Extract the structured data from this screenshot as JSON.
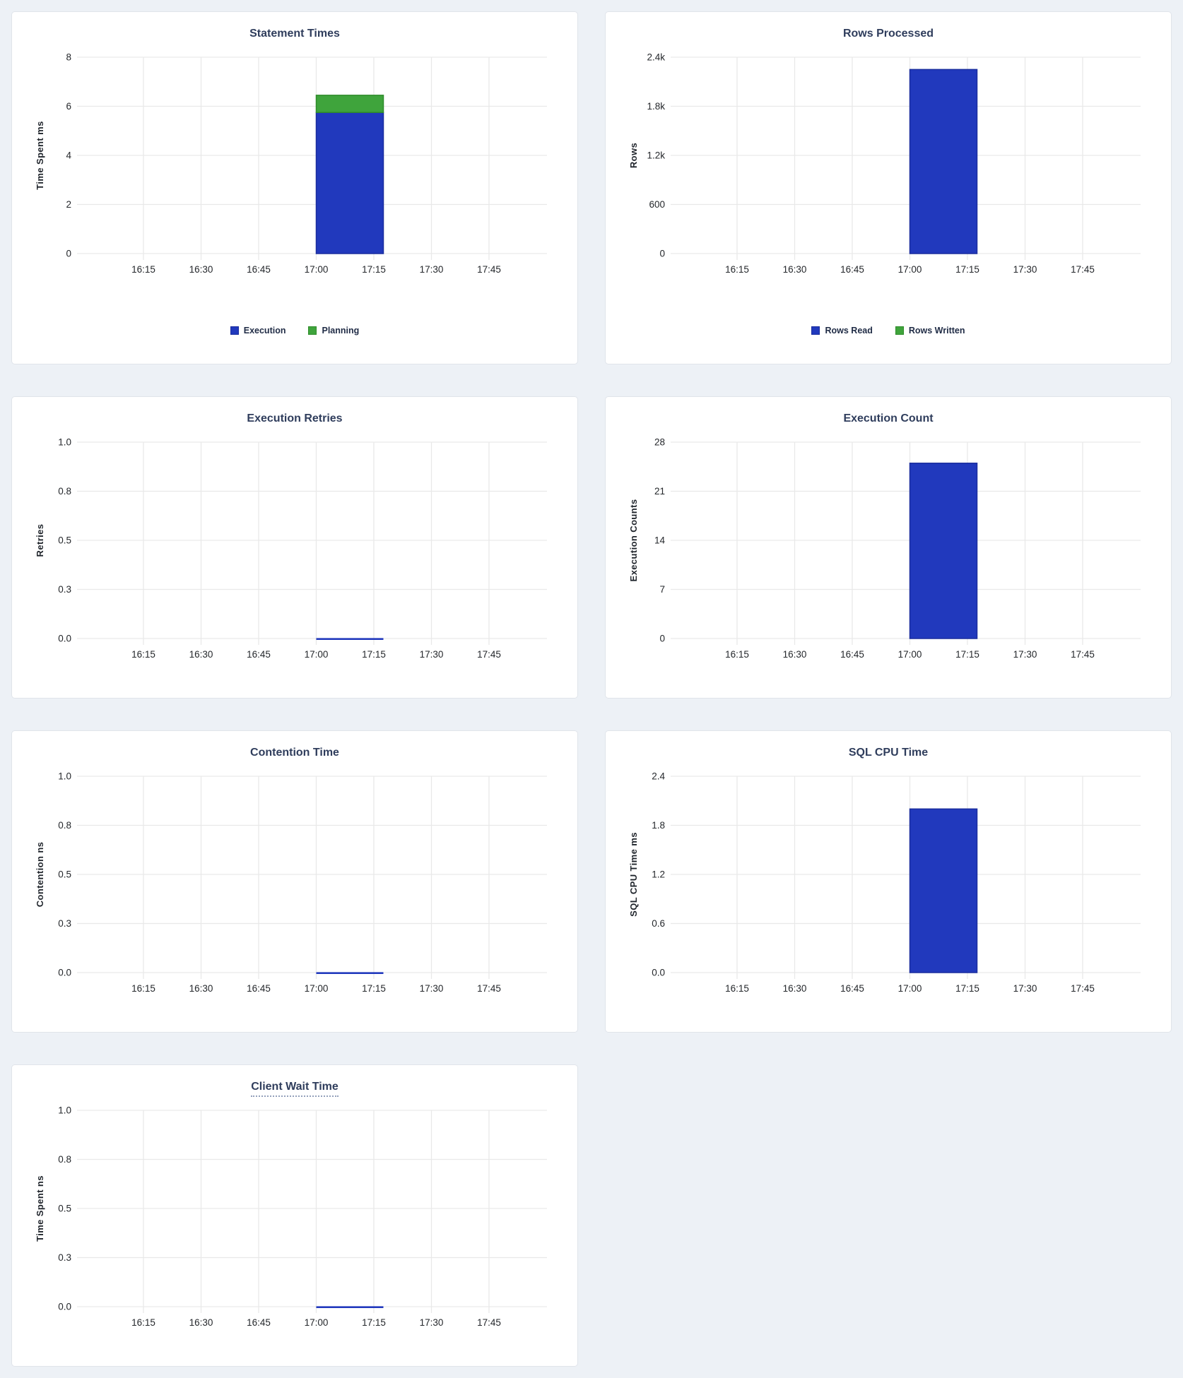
{
  "page": {
    "background": "#edf1f6"
  },
  "colors": {
    "bar_blue": "#2139bd",
    "bar_blue_stroke": "#1a2d9e",
    "bar_green": "#3fa43c",
    "bar_green_stroke": "#2e8c2a",
    "grid": "#e9e9e9",
    "title_text": "#2f3d5c",
    "tick_text": "#24272b",
    "legend_text": "#1f2b45",
    "title_underline": "#93a0ba"
  },
  "chart_data": [
    {
      "type": "bar",
      "title": "Statement Times",
      "title_underlined": false,
      "ylabel": "Time Spent ms",
      "ymax": 8,
      "ytick_labels": [
        "0",
        "2",
        "4",
        "6",
        "8"
      ],
      "xtick_labels": [
        "16:15",
        "16:30",
        "16:45",
        "17:00",
        "17:15",
        "17:30",
        "17:45"
      ],
      "bar_window": {
        "start": "17:00",
        "end": "17:15"
      },
      "stacked": true,
      "series": [
        {
          "name": "Execution",
          "color": "blue",
          "value": 5.75
        },
        {
          "name": "Planning",
          "color": "green",
          "value": 0.7
        }
      ],
      "legend": [
        {
          "label": "Execution",
          "color": "blue"
        },
        {
          "label": "Planning",
          "color": "green"
        }
      ]
    },
    {
      "type": "bar",
      "title": "Rows Processed",
      "title_underlined": false,
      "ylabel": "Rows",
      "ymax": 2400,
      "ytick_labels": [
        "0",
        "600",
        "1.2k",
        "1.8k",
        "2.4k"
      ],
      "xtick_labels": [
        "16:15",
        "16:30",
        "16:45",
        "17:00",
        "17:15",
        "17:30",
        "17:45"
      ],
      "bar_window": {
        "start": "17:00",
        "end": "17:15"
      },
      "stacked": true,
      "series": [
        {
          "name": "Rows Read",
          "color": "blue",
          "value": 2250
        },
        {
          "name": "Rows Written",
          "color": "green",
          "value": 0
        }
      ],
      "legend": [
        {
          "label": "Rows Read",
          "color": "blue"
        },
        {
          "label": "Rows Written",
          "color": "green"
        }
      ]
    },
    {
      "type": "bar",
      "title": "Execution Retries",
      "title_underlined": false,
      "ylabel": "Retries",
      "ymax": 1,
      "ytick_labels": [
        "0.0",
        "0.3",
        "0.5",
        "0.8",
        "1.0"
      ],
      "xtick_labels": [
        "16:15",
        "16:30",
        "16:45",
        "17:00",
        "17:15",
        "17:30",
        "17:45"
      ],
      "bar_window": {
        "start": "17:00",
        "end": "17:15"
      },
      "stacked": false,
      "series": [
        {
          "color": "blue",
          "value": 0
        }
      ],
      "legend": null
    },
    {
      "type": "bar",
      "title": "Execution Count",
      "title_underlined": false,
      "ylabel": "Execution Counts",
      "ymax": 28,
      "ytick_labels": [
        "0",
        "7",
        "14",
        "21",
        "28"
      ],
      "xtick_labels": [
        "16:15",
        "16:30",
        "16:45",
        "17:00",
        "17:15",
        "17:30",
        "17:45"
      ],
      "bar_window": {
        "start": "17:00",
        "end": "17:15"
      },
      "stacked": false,
      "series": [
        {
          "color": "blue",
          "value": 25
        }
      ],
      "legend": null
    },
    {
      "type": "bar",
      "title": "Contention Time",
      "title_underlined": false,
      "ylabel": "Contention ns",
      "ymax": 1,
      "ytick_labels": [
        "0.0",
        "0.3",
        "0.5",
        "0.8",
        "1.0"
      ],
      "xtick_labels": [
        "16:15",
        "16:30",
        "16:45",
        "17:00",
        "17:15",
        "17:30",
        "17:45"
      ],
      "bar_window": {
        "start": "17:00",
        "end": "17:15"
      },
      "stacked": false,
      "series": [
        {
          "color": "blue",
          "value": 0
        }
      ],
      "legend": null
    },
    {
      "type": "bar",
      "title": "SQL CPU Time",
      "title_underlined": false,
      "ylabel": "SQL CPU Time ms",
      "ymax": 2.4,
      "ytick_labels": [
        "0.0",
        "0.6",
        "1.2",
        "1.8",
        "2.4"
      ],
      "xtick_labels": [
        "16:15",
        "16:30",
        "16:45",
        "17:00",
        "17:15",
        "17:30",
        "17:45"
      ],
      "bar_window": {
        "start": "17:00",
        "end": "17:15"
      },
      "stacked": false,
      "series": [
        {
          "color": "blue",
          "value": 2.0
        }
      ],
      "legend": null
    },
    {
      "type": "bar",
      "title": "Client Wait Time",
      "title_underlined": true,
      "ylabel": "Time Spent ns",
      "ymax": 1,
      "ytick_labels": [
        "0.0",
        "0.3",
        "0.5",
        "0.8",
        "1.0"
      ],
      "xtick_labels": [
        "16:15",
        "16:30",
        "16:45",
        "17:00",
        "17:15",
        "17:30",
        "17:45"
      ],
      "bar_window": {
        "start": "17:00",
        "end": "17:15"
      },
      "stacked": false,
      "series": [
        {
          "color": "blue",
          "value": 0
        }
      ],
      "legend": null
    }
  ]
}
